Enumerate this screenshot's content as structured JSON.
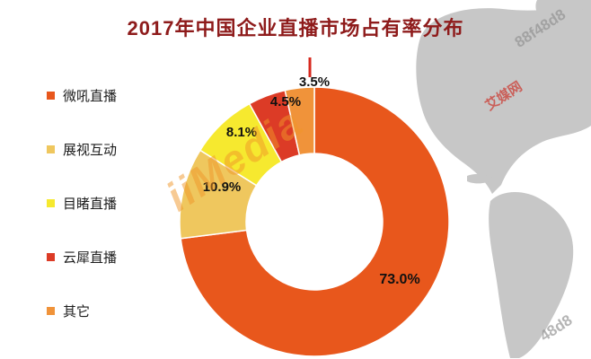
{
  "title": "2017年中国企业直播市场占有率分布",
  "watermarks": {
    "media_logo": "iiMedia",
    "site_name": "艾媒网",
    "code_top": "88f48d8",
    "code_bottom": "48d8"
  },
  "chart_data": {
    "type": "pie",
    "subtype": "donut",
    "title": "2017年中国企业直播市场占有率分布",
    "categories": [
      "微吼直播",
      "展视互动",
      "目睹直播",
      "云犀直播",
      "其它"
    ],
    "values": [
      73.0,
      10.9,
      8.1,
      4.5,
      3.5
    ],
    "labels": [
      "73.0%",
      "10.9%",
      "8.1%",
      "4.5%",
      "3.5%"
    ],
    "colors": [
      "#E8571C",
      "#EFC75E",
      "#F6E92F",
      "#DC3B26",
      "#F0933A"
    ],
    "legend_position": "left",
    "start_angle_deg": 0,
    "direction": "clockwise",
    "title_color": "#8E1B1B",
    "leader_line_color": "#D7281E"
  }
}
